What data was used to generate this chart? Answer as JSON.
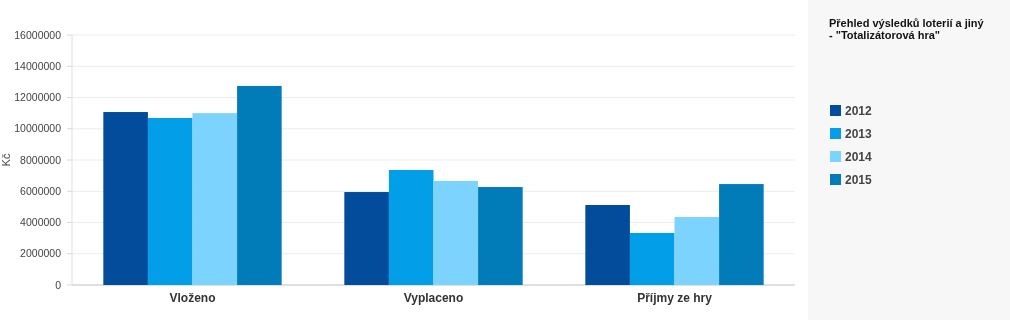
{
  "chart_data": {
    "type": "bar",
    "title": "Přehled výsledků loterií a jiný\n- \"Totalizátorová hra\"",
    "ylabel": "Kč",
    "categories": [
      "Vloženo",
      "Vyplaceno",
      "Příjmy ze hry"
    ],
    "series": [
      {
        "name": "2012",
        "color": "#034b9b",
        "values": [
          11070000,
          5950000,
          5120000
        ]
      },
      {
        "name": "2013",
        "color": "#029fe8",
        "values": [
          10690000,
          7360000,
          3330000
        ]
      },
      {
        "name": "2014",
        "color": "#7cd4fe",
        "values": [
          11000000,
          6660000,
          4350000
        ]
      },
      {
        "name": "2015",
        "color": "#027cb9",
        "values": [
          12740000,
          6270000,
          6460000
        ]
      }
    ],
    "ylim": [
      0,
      16000000
    ],
    "yticks": [
      0,
      2000000,
      4000000,
      6000000,
      8000000,
      10000000,
      12000000,
      14000000,
      16000000
    ],
    "grid": "y",
    "legend": "right"
  }
}
